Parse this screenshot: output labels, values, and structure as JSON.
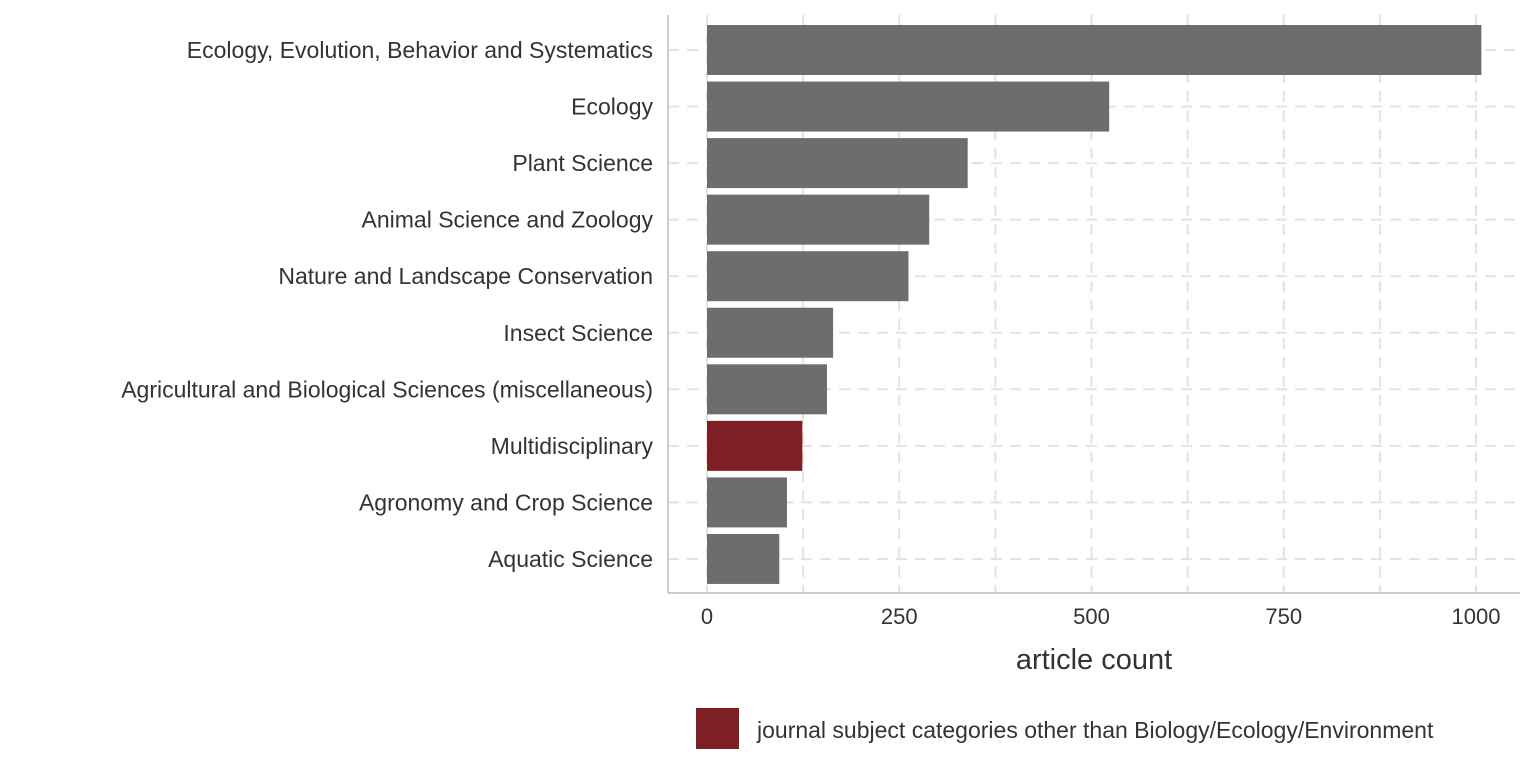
{
  "chart_data": {
    "type": "bar",
    "orientation": "horizontal",
    "categories": [
      "Ecology, Evolution, Behavior and Systematics",
      "Ecology",
      "Plant Science",
      "Animal Science and Zoology",
      "Nature and Landscape Conservation",
      "Insect Science",
      "Agricultural and Biological Sciences (miscellaneous)",
      "Multidisciplinary",
      "Agronomy and Crop Science",
      "Aquatic Science"
    ],
    "values": [
      1007,
      523,
      339,
      289,
      262,
      164,
      156,
      124,
      104,
      94
    ],
    "highlight": [
      false,
      false,
      false,
      false,
      false,
      false,
      false,
      true,
      false,
      false
    ],
    "xlabel": "article count",
    "ylabel": "",
    "xlim": [
      -50,
      1060
    ],
    "xticks": [
      0,
      250,
      500,
      750,
      1000
    ],
    "grid": true,
    "grid_style": "dashed",
    "legend": {
      "placement": "bottom",
      "entries": [
        {
          "label": "journal subject categories other than Biology/Ecology/Environment",
          "color": "#7d1f25"
        }
      ]
    },
    "colors": {
      "bar": "#6d6d6d",
      "highlight": "#7d1f25",
      "grid": "#e3e3e3",
      "axis": "#cccccc",
      "text": "#333333"
    }
  }
}
